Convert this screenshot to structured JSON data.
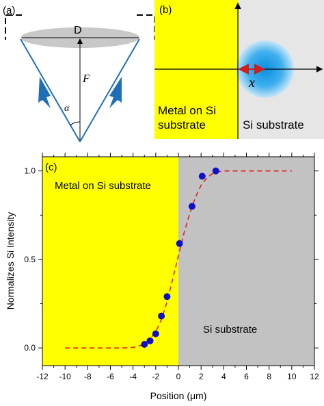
{
  "panel_a": {
    "label": "(a)",
    "diameter_label": "D",
    "focal_label": "F",
    "angle_label": "α",
    "colors": {
      "lens": "#c8c8c8",
      "beam": "#1f6fb8"
    }
  },
  "panel_b": {
    "label": "(b)",
    "metal_label_line1": "Metal on Si",
    "metal_label_line2": "substrate",
    "si_label": "Si substrate",
    "offset_label": "x",
    "colors": {
      "metal": "#ffff00",
      "si": "#e6e6e6",
      "spot": "#1aa3e8",
      "arrow": "#cc1f1f"
    }
  },
  "panel_c": {
    "label": "(c)",
    "metal_label": "Metal on Si substrate",
    "si_label": "Si substrate",
    "colors": {
      "metal": "#ffff00",
      "si": "#c2c2c2",
      "points": "#1010c8",
      "fit": "#e01f1f"
    }
  },
  "chart_data": {
    "type": "scatter",
    "xlabel": "Position (μm)",
    "ylabel": "Normalizes Si Intensity",
    "xlim": [
      -12,
      12
    ],
    "ylim": [
      -0.1,
      1.08
    ],
    "x_ticks": [
      -12,
      -10,
      -8,
      -6,
      -4,
      -2,
      0,
      2,
      4,
      6,
      8,
      10,
      12
    ],
    "x_tick_labels": [
      "-12",
      "-10",
      "-8",
      "-6",
      "-4",
      "-2",
      "0",
      "2",
      "4",
      "6",
      "8",
      "10",
      "12"
    ],
    "y_ticks": [
      0.0,
      0.5,
      1.0
    ],
    "y_tick_labels": [
      "0.0",
      "0.5",
      "1.0"
    ],
    "regions": [
      {
        "label": "Metal on Si substrate",
        "x_range": [
          -12,
          0
        ]
      },
      {
        "label": "Si substrate",
        "x_range": [
          0,
          12
        ]
      }
    ],
    "series": [
      {
        "kind": "points",
        "x": [
          -3.0,
          -2.5,
          -2.0,
          -1.5,
          -1.0,
          0.1,
          1.2,
          2.1,
          3.3
        ],
        "y": [
          0.02,
          0.04,
          0.08,
          0.18,
          0.29,
          0.59,
          0.8,
          0.97,
          1.0
        ]
      },
      {
        "kind": "dashed-fit",
        "x": [
          -10,
          -8,
          -6,
          -5,
          -4,
          -3.5,
          -3,
          -2.5,
          -2,
          -1.5,
          -1,
          -0.5,
          0,
          0.5,
          1,
          1.5,
          2,
          2.5,
          3,
          3.5,
          4,
          5,
          6,
          8,
          10
        ],
        "y": [
          0.0,
          0.0,
          0.0,
          0.0,
          0.003,
          0.01,
          0.025,
          0.05,
          0.09,
          0.16,
          0.26,
          0.39,
          0.52,
          0.65,
          0.76,
          0.85,
          0.92,
          0.96,
          0.985,
          0.995,
          1.0,
          1.0,
          1.0,
          1.0,
          1.0
        ]
      }
    ]
  }
}
